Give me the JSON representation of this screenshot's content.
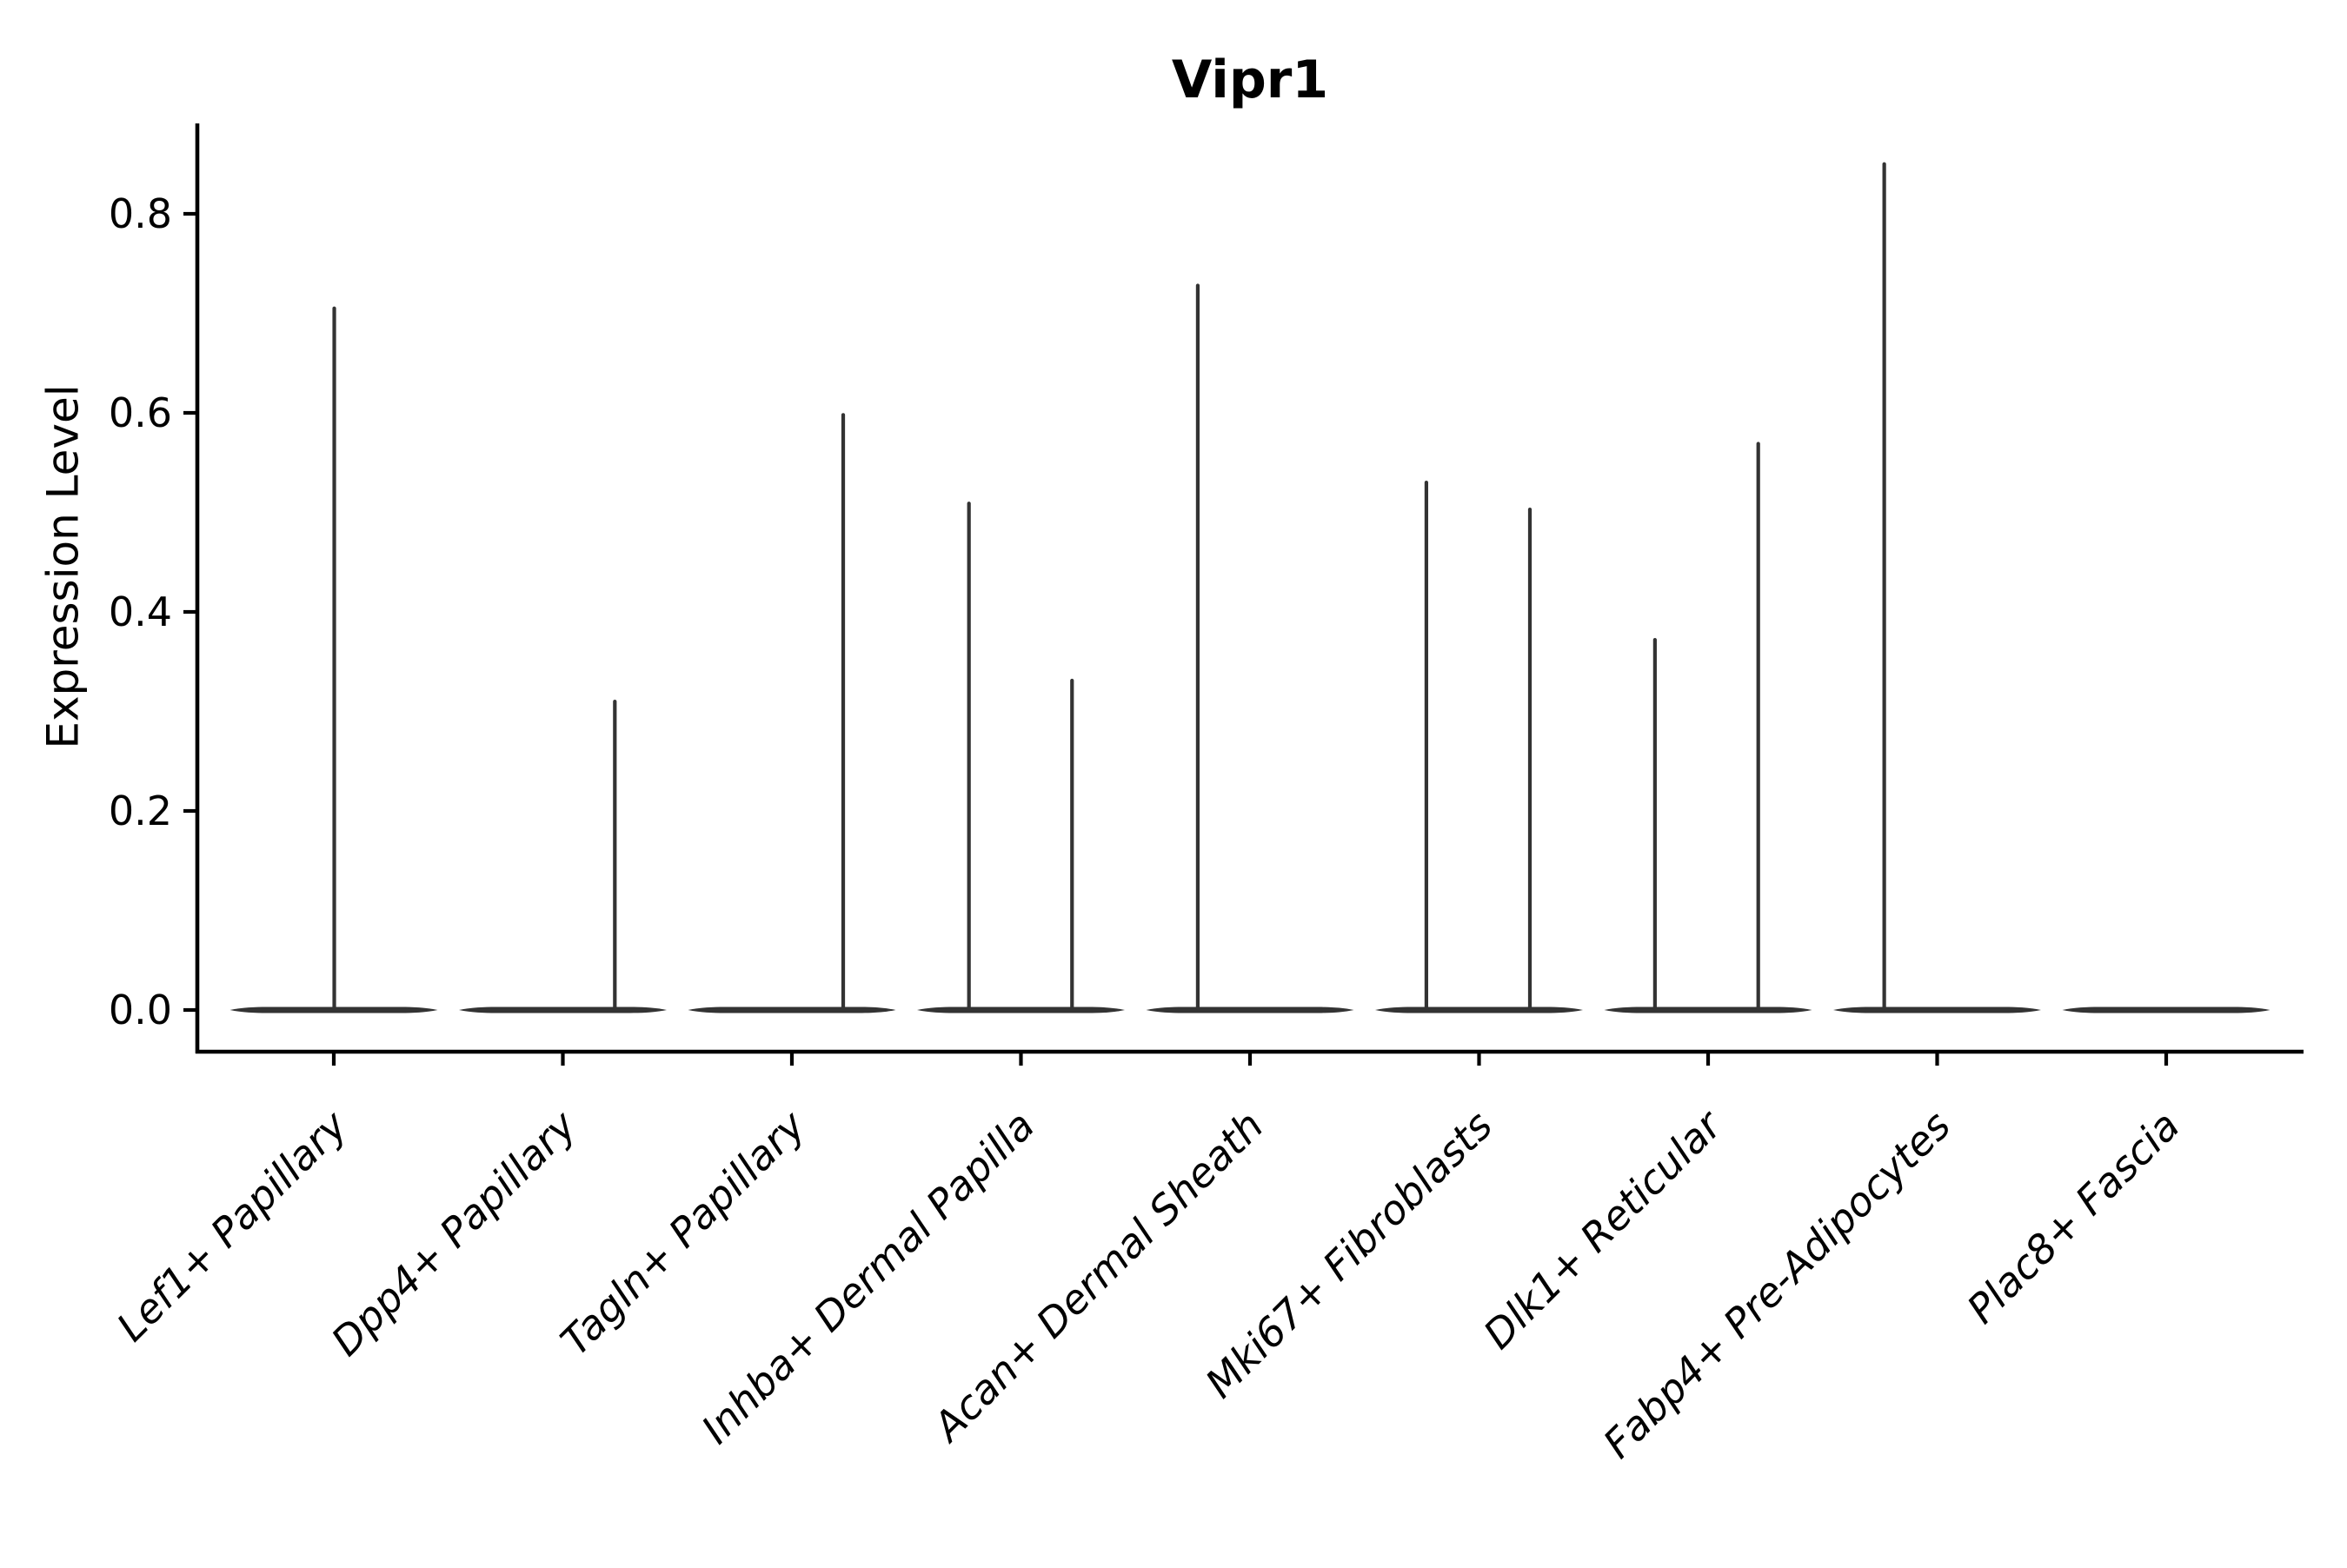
{
  "chart_data": {
    "type": "violin",
    "title": "Vipr1",
    "xlabel": "",
    "ylabel": "Expression Level",
    "ytick_labels": [
      "0.0",
      "0.2",
      "0.4",
      "0.6",
      "0.8"
    ],
    "ytick_values": [
      0.0,
      0.2,
      0.4,
      0.6,
      0.8
    ],
    "ylim": [
      -0.042,
      0.891
    ],
    "grid": false,
    "legend": "none",
    "violin_color": "#333333",
    "axis_color": "#000000",
    "violin_base_value": 0.0,
    "violin_base_width_fraction": 0.91,
    "categories": [
      {
        "label": "Lef1+ Papillary",
        "spikes": [
          {
            "dx": 0.002,
            "value": 0.705
          }
        ]
      },
      {
        "label": "Dpp4+ Papillary",
        "spikes": [
          {
            "dx": 0.227,
            "value": 0.31
          }
        ]
      },
      {
        "label": "Tagln+ Papillary",
        "spikes": [
          {
            "dx": 0.224,
            "value": 0.598
          }
        ]
      },
      {
        "label": "Inhba+ Dermal Papilla",
        "spikes": [
          {
            "dx": -0.227,
            "value": 0.509
          },
          {
            "dx": 0.223,
            "value": 0.331
          }
        ]
      },
      {
        "label": "Acan+ Dermal Sheath",
        "spikes": [
          {
            "dx": -0.228,
            "value": 0.728
          }
        ]
      },
      {
        "label": "Mki67+ Fibroblasts",
        "spikes": [
          {
            "dx": -0.23,
            "value": 0.53
          },
          {
            "dx": 0.222,
            "value": 0.503
          }
        ]
      },
      {
        "label": "Dlk1+ Reticular",
        "spikes": [
          {
            "dx": -0.232,
            "value": 0.372
          },
          {
            "dx": 0.219,
            "value": 0.569
          }
        ]
      },
      {
        "label": "Fabp4+ Pre-Adipocytes",
        "spikes": [
          {
            "dx": -0.231,
            "value": 0.85
          }
        ]
      },
      {
        "label": "Plac8+ Fascia",
        "spikes": []
      }
    ]
  }
}
